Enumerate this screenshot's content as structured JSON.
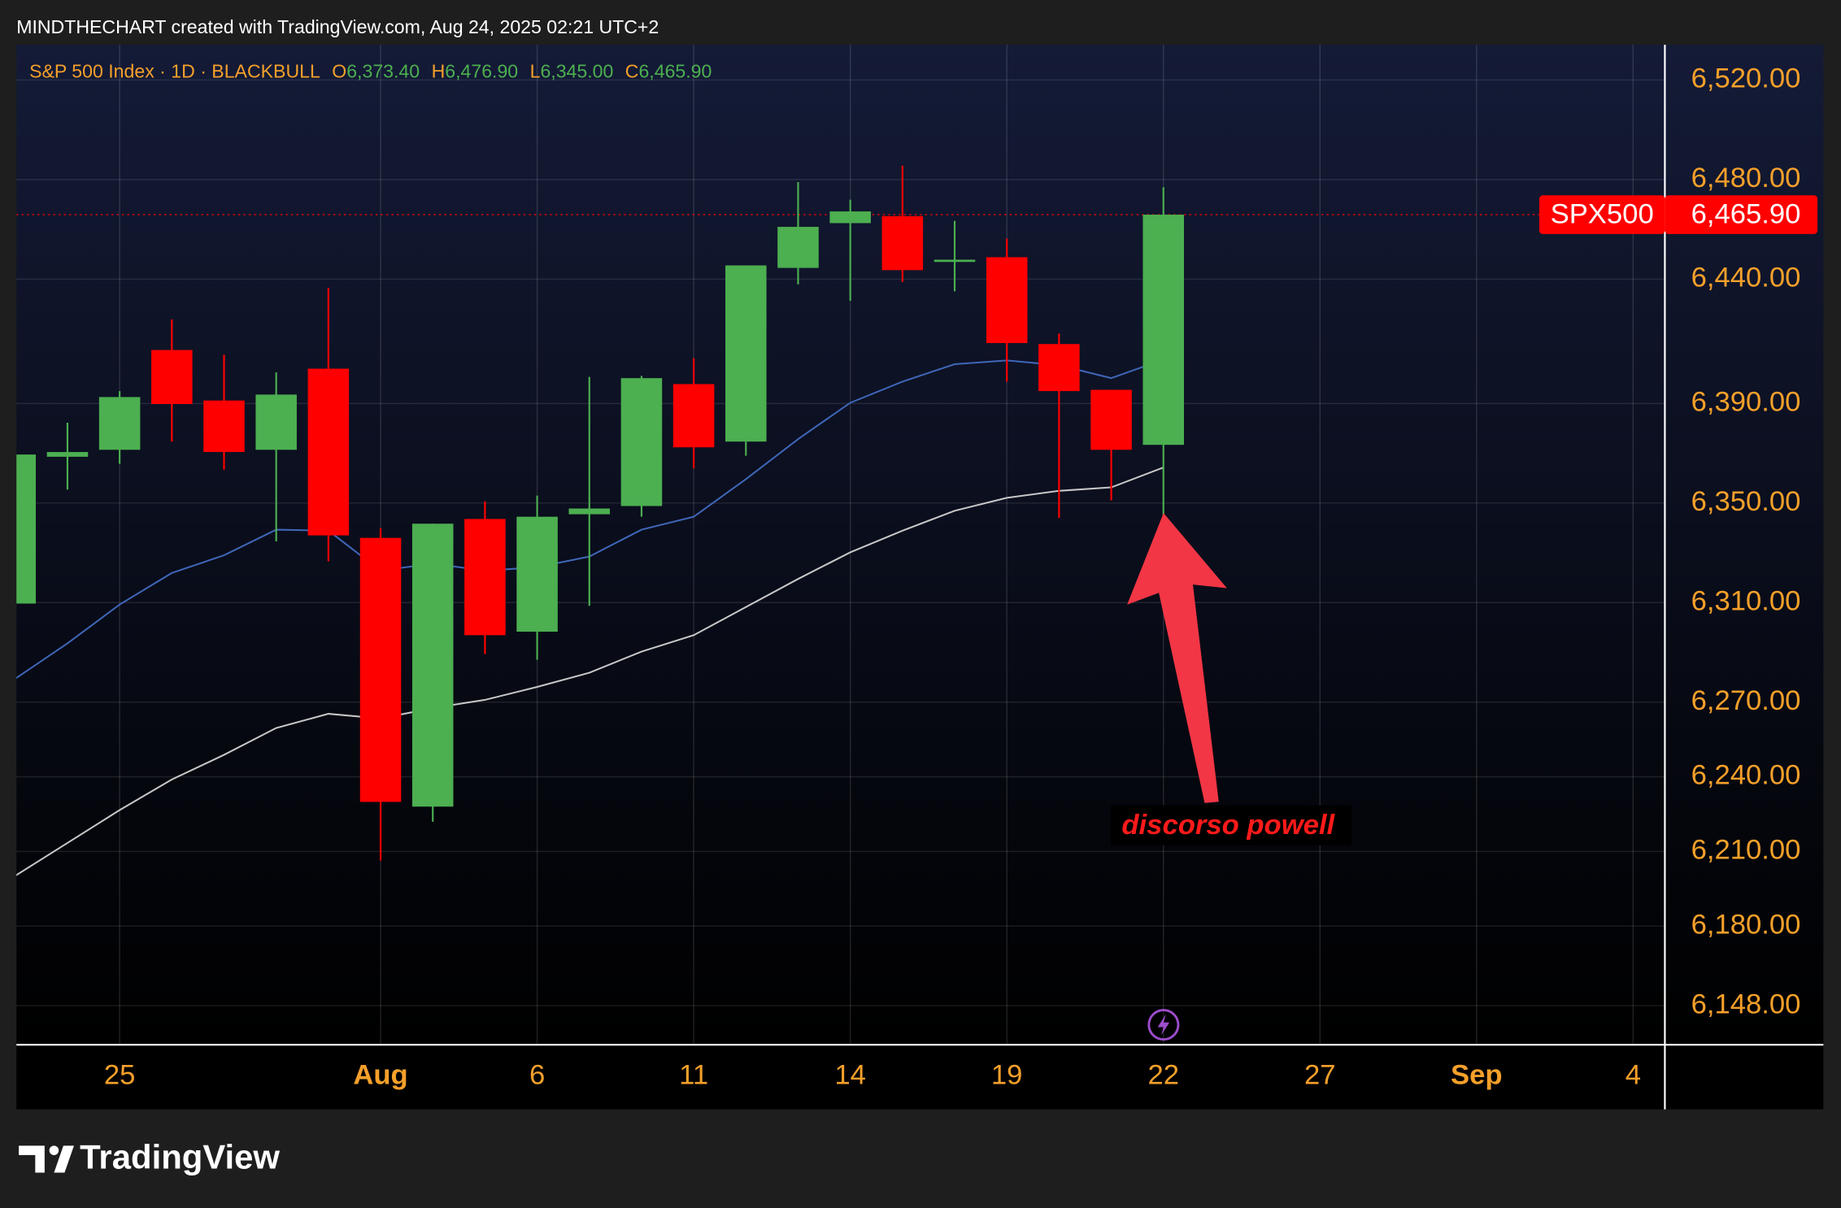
{
  "credit": "MINDTHECHART created with TradingView.com, Aug 24, 2025 02:21 UTC+2",
  "brand": "TradingView",
  "chart_data": {
    "type": "candlestick",
    "title": "S&P 500 Index · 1D · BLACKBULL",
    "ohlc_legend": [
      {
        "key": "O",
        "value": "6,373.40"
      },
      {
        "key": "H",
        "value": "6,476.90"
      },
      {
        "key": "L",
        "value": "6,345.00"
      },
      {
        "key": "C",
        "value": "6,465.90"
      }
    ],
    "categories": [
      null,
      null,
      "25",
      null,
      null,
      null,
      null,
      "Aug",
      null,
      null,
      "6",
      null,
      null,
      "11",
      null,
      null,
      "14",
      null,
      null,
      "19",
      null,
      null,
      "22",
      null,
      null,
      "27",
      null,
      null,
      "Sep",
      null,
      null,
      "4"
    ],
    "open": [
      6309.6,
      6368.6,
      6371.4,
      6411.5,
      6391.2,
      6371.4,
      6404.0,
      6336.0,
      6228.0,
      6343.6,
      6298.3,
      6345.5,
      6348.8,
      6397.8,
      6374.7,
      6444.5,
      6462.5,
      6465.3,
      6446.9,
      6448.8,
      6413.9,
      6395.5,
      6373.4,
      null,
      null,
      null,
      null,
      null,
      null,
      null,
      null,
      null
    ],
    "high": [
      6370.0,
      6382.3,
      6395.0,
      6423.8,
      6409.6,
      6402.5,
      6436.5,
      6339.8,
      6341.7,
      6350.7,
      6353.0,
      6400.7,
      6401.1,
      6408.2,
      6445.5,
      6479.0,
      6471.9,
      6485.6,
      6463.4,
      6456.3,
      6418.1,
      6395.5,
      6476.9,
      null,
      null,
      null,
      null,
      null,
      null,
      null,
      null,
      null
    ],
    "low": [
      6309.0,
      6355.4,
      6365.8,
      6374.7,
      6363.4,
      6334.6,
      6326.6,
      6206.3,
      6221.9,
      6289.3,
      6287.0,
      6308.7,
      6344.5,
      6363.9,
      6369.0,
      6437.9,
      6431.3,
      6438.9,
      6435.1,
      6398.8,
      6344.0,
      6351.1,
      6345.0,
      null,
      null,
      null,
      null,
      null,
      null,
      null,
      null,
      null
    ],
    "close": [
      6369.5,
      6370.5,
      6392.6,
      6389.8,
      6370.5,
      6393.6,
      6337.0,
      6229.9,
      6341.7,
      6296.9,
      6344.5,
      6347.8,
      6400.2,
      6372.4,
      6445.5,
      6461.0,
      6467.2,
      6443.6,
      6447.8,
      6414.3,
      6395.0,
      6371.4,
      6465.9,
      null,
      null,
      null,
      null,
      null,
      null,
      null,
      null,
      null
    ],
    "up_color": "#4caf50",
    "down_color": "#ff0000",
    "overlays": [
      {
        "color": "#3f66b8",
        "values": [
          6279.4,
          6293.6,
          6309.2,
          6321.9,
          6329.0,
          6339.3,
          6338.9,
          6322.8,
          6325.7,
          6322.8,
          6324.2,
          6328.5,
          6339.3,
          6344.5,
          6359.6,
          6375.7,
          6390.3,
          6398.8,
          6405.8,
          6407.3,
          6405.4,
          6400.2,
          6407.7,
          null,
          null,
          null,
          null,
          null,
          null,
          null,
          null,
          null
        ]
      },
      {
        "color": "#c8c8c8",
        "values": [
          6200.2,
          6213.4,
          6226.6,
          6238.9,
          6248.8,
          6259.6,
          6265.3,
          6263.4,
          6267.6,
          6270.9,
          6276.1,
          6281.8,
          6290.3,
          6296.9,
          6308.2,
          6319.5,
          6330.2,
          6338.9,
          6346.9,
          6352.1,
          6354.9,
          6356.3,
          6364.3,
          null,
          null,
          null,
          null,
          null,
          null,
          null,
          null,
          null
        ]
      }
    ],
    "price_tag": {
      "name": "SPX500",
      "value_label": "6,465.90",
      "color": "#ff0000"
    },
    "annotation": "discorso powell",
    "ylim": [
      6132.3,
      6534.2
    ],
    "yticks": [
      {
        "value": 6520,
        "label": "6,520.00"
      },
      {
        "value": 6480,
        "label": "6,480.00"
      },
      {
        "value": 6440,
        "label": "6,440.00"
      },
      {
        "value": 6390,
        "label": "6,390.00"
      },
      {
        "value": 6350,
        "label": "6,350.00"
      },
      {
        "value": 6310,
        "label": "6,310.00"
      },
      {
        "value": 6270,
        "label": "6,270.00"
      },
      {
        "value": 6240,
        "label": "6,240.00"
      },
      {
        "value": 6210,
        "label": "6,210.00"
      },
      {
        "value": 6180,
        "label": "6,180.00"
      },
      {
        "value": 6148,
        "label": "6,148.00"
      }
    ],
    "grid": true
  }
}
